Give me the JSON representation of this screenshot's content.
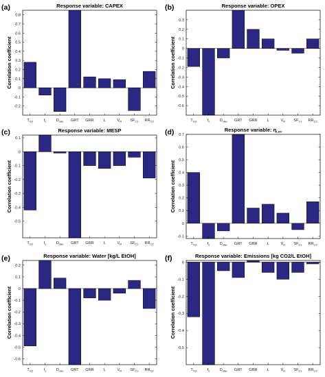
{
  "figure_labels": [
    "(a)",
    "(b)",
    "(c)",
    "(d)",
    "(e)",
    "(f)"
  ],
  "chart_data": [
    {
      "type": "bar",
      "title": "Response variable: CAPEX",
      "ylabel": "Correlation coefficient",
      "categories": [
        {
          "main": "T",
          "sub": "GZ"
        },
        {
          "main": "f",
          "sub": "s"
        },
        {
          "main": "D",
          "sub": "rate"
        },
        {
          "main": "GRT",
          "sub": ""
        },
        {
          "main": "GRR",
          "sub": ""
        },
        {
          "main": "L",
          "sub": ""
        },
        {
          "main": "V",
          "sub": "R"
        },
        {
          "main": "SF",
          "sub": "C1"
        },
        {
          "main": "RR",
          "sub": "C2"
        }
      ],
      "values": [
        0.28,
        -0.08,
        -0.26,
        0.85,
        0.12,
        0.1,
        0.09,
        -0.25,
        0.18
      ],
      "ylim": [
        -0.3,
        0.85
      ],
      "yticks": [
        -0.2,
        -0.1,
        0,
        0.1,
        0.2,
        0.3,
        0.4,
        0.5,
        0.6,
        0.7,
        0.8
      ],
      "ytick_labels": [
        "-0.2",
        "-0.1",
        "0",
        "0.1",
        "0.2",
        "0.3",
        "0.4",
        "0.5",
        "0.6",
        "0.7",
        "0.8"
      ]
    },
    {
      "type": "bar",
      "title": "Response variable: OPEX",
      "ylabel": "Correlation coefficient",
      "categories": [
        {
          "main": "T",
          "sub": "GZ"
        },
        {
          "main": "f",
          "sub": "s"
        },
        {
          "main": "D",
          "sub": "rate"
        },
        {
          "main": "GRT",
          "sub": ""
        },
        {
          "main": "GRR",
          "sub": ""
        },
        {
          "main": "L",
          "sub": ""
        },
        {
          "main": "V",
          "sub": "R"
        },
        {
          "main": "SF",
          "sub": "C1"
        },
        {
          "main": "RR",
          "sub": "C2"
        }
      ],
      "values": [
        -0.19,
        -0.7,
        -0.1,
        0.4,
        0.2,
        0.1,
        -0.02,
        -0.05,
        0.1
      ],
      "ylim": [
        -0.7,
        0.4
      ],
      "yticks": [
        -0.6,
        -0.5,
        -0.4,
        -0.3,
        -0.2,
        -0.1,
        0,
        0.1,
        0.2,
        0.3
      ],
      "ytick_labels": [
        "-0.6",
        "-0.5",
        "-0.4",
        "-0.3",
        "-0.2",
        "-0.1",
        "0",
        "0.1",
        "0.2",
        "0.3"
      ]
    },
    {
      "type": "bar",
      "title": "Response variable: MESP",
      "ylabel": "Correlation coefficient",
      "categories": [
        {
          "main": "T",
          "sub": "GZ"
        },
        {
          "main": "f",
          "sub": "s"
        },
        {
          "main": "D",
          "sub": "rate"
        },
        {
          "main": "GRT",
          "sub": ""
        },
        {
          "main": "GRR",
          "sub": ""
        },
        {
          "main": "L",
          "sub": ""
        },
        {
          "main": "V",
          "sub": "R"
        },
        {
          "main": "SF",
          "sub": "C1"
        },
        {
          "main": "RR",
          "sub": "C2"
        }
      ],
      "values": [
        -0.42,
        0.12,
        -0.01,
        -0.62,
        -0.1,
        -0.12,
        -0.1,
        -0.04,
        -0.19
      ],
      "ylim": [
        -0.62,
        0.12
      ],
      "yticks": [
        -0.5,
        -0.4,
        -0.3,
        -0.2,
        -0.1,
        0,
        0.1
      ],
      "ytick_labels": [
        "-0.5",
        "-0.4",
        "-0.3",
        "-0.2",
        "-0.1",
        "0",
        "0.1"
      ]
    },
    {
      "type": "bar",
      "title": "Response variable: η",
      "title_sub": "LHV",
      "ylabel": "Correlation coefficient",
      "categories": [
        {
          "main": "T",
          "sub": "GZ"
        },
        {
          "main": "f",
          "sub": "s"
        },
        {
          "main": "D",
          "sub": "rate"
        },
        {
          "main": "GRT",
          "sub": ""
        },
        {
          "main": "GRR",
          "sub": ""
        },
        {
          "main": "L",
          "sub": ""
        },
        {
          "main": "V",
          "sub": "R"
        },
        {
          "main": "SF",
          "sub": "C1"
        },
        {
          "main": "RR",
          "sub": "C2"
        }
      ],
      "values": [
        0.4,
        -0.12,
        -0.06,
        0.7,
        0.12,
        0.15,
        0.08,
        -0.05,
        0.17
      ],
      "ylim": [
        -0.12,
        0.7
      ],
      "yticks": [
        -0.1,
        0,
        0.1,
        0.2,
        0.3,
        0.4,
        0.5,
        0.6,
        0.7
      ],
      "ytick_labels": [
        "-0.1",
        "0",
        "0.1",
        "0.2",
        "0.3",
        "0.4",
        "0.5",
        "0.6",
        "0.7"
      ]
    },
    {
      "type": "bar",
      "title": "Response variable: Water [kg/L EtOH]",
      "ylabel": "Correlation coefficient",
      "categories": [
        {
          "main": "T",
          "sub": "GZ"
        },
        {
          "main": "f",
          "sub": "s"
        },
        {
          "main": "D",
          "sub": "rate"
        },
        {
          "main": "GRT",
          "sub": ""
        },
        {
          "main": "GRR",
          "sub": ""
        },
        {
          "main": "L",
          "sub": ""
        },
        {
          "main": "V",
          "sub": "R"
        },
        {
          "main": "SF",
          "sub": "C1"
        },
        {
          "main": "RR",
          "sub": "C2"
        }
      ],
      "values": [
        -0.49,
        0.24,
        0.09,
        -0.65,
        -0.08,
        -0.1,
        -0.04,
        0.07,
        -0.17
      ],
      "ylim": [
        -0.65,
        0.24
      ],
      "yticks": [
        -0.6,
        -0.5,
        -0.4,
        -0.3,
        -0.2,
        -0.1,
        0,
        0.1,
        0.2
      ],
      "ytick_labels": [
        "-0.6",
        "-0.5",
        "-0.4",
        "-0.3",
        "-0.2",
        "-0.1",
        "0",
        "0.1",
        "0.2"
      ]
    },
    {
      "type": "bar",
      "title": "Response variable: Emissions [kg CO2/L EtOH]",
      "ylabel": "Correlation coefficient",
      "categories": [
        {
          "main": "T",
          "sub": "GZ"
        },
        {
          "main": "f",
          "sub": "s"
        },
        {
          "main": "D",
          "sub": "rate"
        },
        {
          "main": "GRT",
          "sub": ""
        },
        {
          "main": "GRR",
          "sub": ""
        },
        {
          "main": "L",
          "sub": ""
        },
        {
          "main": "V",
          "sub": "R"
        },
        {
          "main": "SF",
          "sub": "C1"
        },
        {
          "main": "RR",
          "sub": "C2"
        }
      ],
      "values": [
        -0.32,
        -0.6,
        -0.05,
        -0.09,
        0.01,
        -0.06,
        -0.1,
        -0.06,
        -0.01
      ],
      "ylim": [
        -0.6,
        0.01
      ],
      "yticks": [
        -0.5,
        -0.4,
        -0.3,
        -0.2,
        -0.1,
        0
      ],
      "ytick_labels": [
        "-0.5",
        "-0.4",
        "-0.3",
        "-0.2",
        "-0.1",
        "0"
      ]
    }
  ]
}
